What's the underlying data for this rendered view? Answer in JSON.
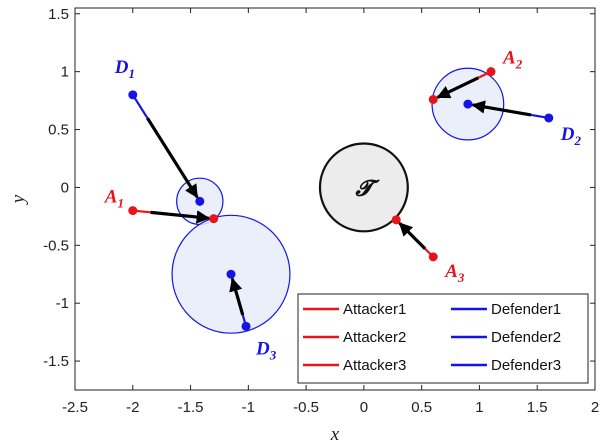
{
  "chart_data": {
    "type": "scatter",
    "title": "",
    "xlabel": "x",
    "ylabel": "y",
    "xlim": [
      -2.5,
      2
    ],
    "ylim": [
      -1.75,
      1.55
    ],
    "xticks": [
      -2.5,
      -2,
      -1.5,
      -1,
      -0.5,
      0,
      0.5,
      1,
      1.5,
      2
    ],
    "yticks": [
      1.5,
      1,
      0.5,
      0,
      -0.5,
      -1,
      -1.5
    ],
    "xtick_labels": [
      "-2.5",
      "-2",
      "-1.5",
      "-1",
      "-0.5",
      "0",
      "0.5",
      "1",
      "1.5",
      "2"
    ],
    "ytick_labels": [
      "1.5",
      "1",
      "0.5",
      "0",
      "-0.5",
      "-1",
      "-1.5"
    ],
    "grid": false,
    "legend_position": "bottom-right",
    "colors": {
      "attacker": "#e8141b",
      "defender": "#1414e6",
      "arrow": "#000000",
      "circle_fill": "#e8ecf8",
      "target_fill": "#ececec"
    },
    "target": {
      "label": "𝓣",
      "center": [
        0,
        0
      ],
      "radius": 0.38
    },
    "attackers": [
      {
        "label": "A",
        "sub": "1",
        "start": [
          -2.0,
          -0.2
        ],
        "end": [
          -1.3,
          -0.27
        ]
      },
      {
        "label": "A",
        "sub": "2",
        "start": [
          1.1,
          1.0
        ],
        "end": [
          0.6,
          0.76
        ]
      },
      {
        "label": "A",
        "sub": "3",
        "start": [
          0.6,
          -0.6
        ],
        "end": [
          0.28,
          -0.28
        ]
      }
    ],
    "defenders": [
      {
        "label": "D",
        "sub": "1",
        "start": [
          -2.0,
          0.8
        ],
        "end": [
          -1.42,
          -0.12
        ],
        "radius": 0.2
      },
      {
        "label": "D",
        "sub": "2",
        "start": [
          1.6,
          0.6
        ],
        "end": [
          0.9,
          0.72
        ],
        "radius": 0.31
      },
      {
        "label": "D",
        "sub": "3",
        "start": [
          -1.02,
          -1.2
        ],
        "end": [
          -1.15,
          -0.75
        ],
        "radius": 0.51
      }
    ],
    "legend": [
      {
        "name": "Attacker1",
        "kind": "attacker"
      },
      {
        "name": "Defender1",
        "kind": "defender"
      },
      {
        "name": "Attacker2",
        "kind": "attacker"
      },
      {
        "name": "Defender2",
        "kind": "defender"
      },
      {
        "name": "Attacker3",
        "kind": "attacker"
      },
      {
        "name": "Defender3",
        "kind": "defender"
      }
    ]
  }
}
